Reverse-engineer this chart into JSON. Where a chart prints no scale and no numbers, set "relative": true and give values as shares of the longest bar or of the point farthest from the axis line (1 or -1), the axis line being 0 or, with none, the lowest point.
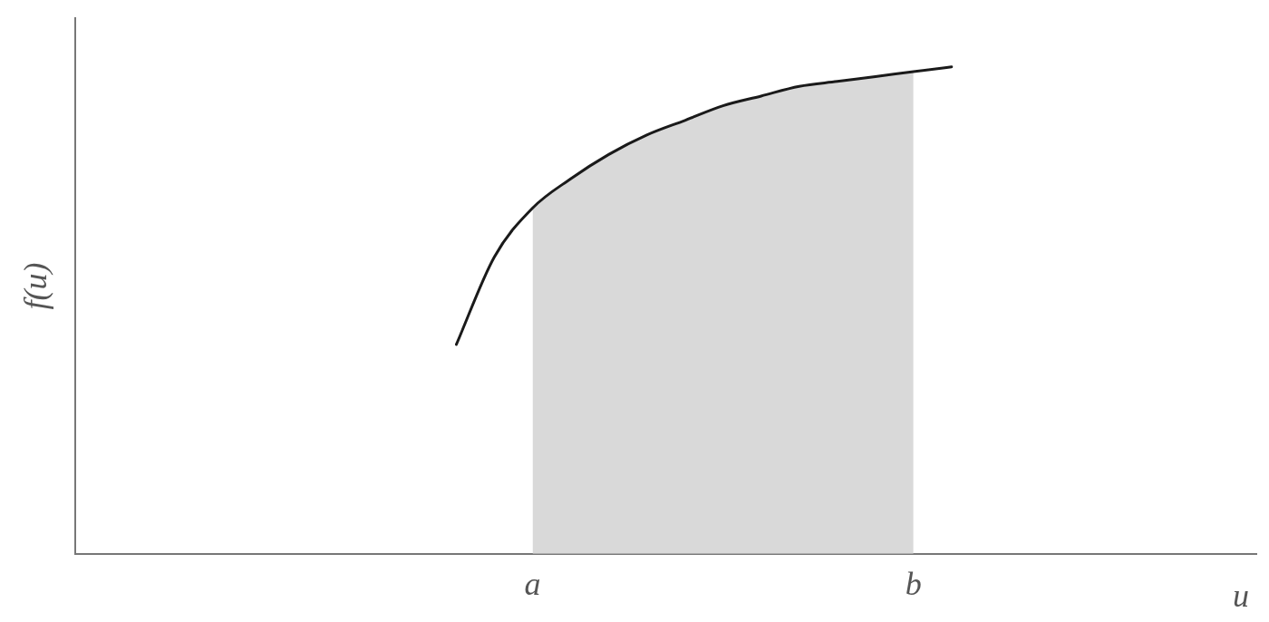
{
  "chart_data": {
    "type": "line",
    "relative": true,
    "xlabel": "u",
    "ylabel": "f(u)",
    "grid": false,
    "legend": false,
    "marker": "none",
    "categories": [
      null,
      null,
      null,
      null,
      null,
      null,
      null,
      null,
      null,
      null,
      null,
      null,
      "a",
      null,
      null,
      null,
      null,
      null,
      null,
      null,
      null,
      null,
      "b",
      null,
      null,
      null,
      null,
      null,
      null,
      null,
      null,
      null
    ],
    "series": [
      {
        "type": "area",
        "color": "#d9d9d9",
        "values": [
          null,
          null,
          null,
          null,
          null,
          null,
          null,
          null,
          null,
          null,
          null,
          null,
          0.71,
          0.77,
          0.82,
          0.86,
          0.89,
          0.92,
          0.94,
          0.96,
          0.97,
          0.98,
          0.99,
          null,
          null,
          null,
          null,
          null,
          null,
          null,
          null,
          null
        ]
      },
      {
        "color": "#1a1a1a",
        "values": [
          null,
          null,
          null,
          null,
          null,
          null,
          null,
          null,
          null,
          null,
          0.43,
          0.61,
          0.71,
          0.77,
          0.82,
          0.86,
          0.89,
          0.92,
          0.94,
          0.96,
          0.97,
          0.98,
          0.99,
          1,
          null,
          null,
          null,
          null,
          null,
          null,
          null,
          null
        ]
      }
    ]
  }
}
